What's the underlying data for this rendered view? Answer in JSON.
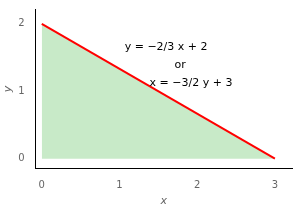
{
  "chart_data": {
    "type": "line",
    "x": [
      0,
      3
    ],
    "series": [
      {
        "type": "area",
        "color": "#c8eac8",
        "values": [
          2,
          0
        ]
      },
      {
        "type": "line",
        "color": "#ff0000",
        "values": [
          2,
          0
        ]
      }
    ],
    "xlim": [
      -0.08,
      3.22
    ],
    "ylim": [
      -0.15,
      2.22
    ],
    "xticks": [
      0,
      1,
      2,
      3
    ],
    "yticks": [
      0,
      1,
      2
    ],
    "xlabel": "x",
    "ylabel": "y",
    "grid": false,
    "annotations": [
      {
        "text": "y = −2/3 x + 2",
        "x": 1.6,
        "y": 1.65
      },
      {
        "text": "or",
        "x": 1.78,
        "y": 1.38
      },
      {
        "text": "x = −3/2 y + 3",
        "x": 1.92,
        "y": 1.12
      }
    ]
  }
}
